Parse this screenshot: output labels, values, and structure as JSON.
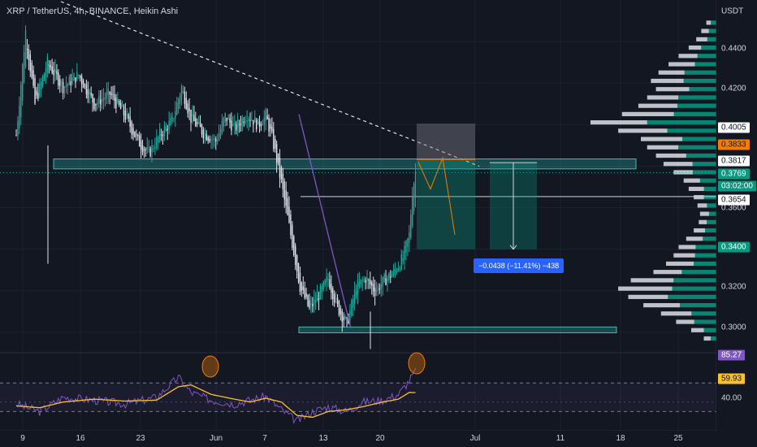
{
  "title": "XRP / TetherUS, 4h, BINANCE, Heikin Ashi",
  "currency": "USDT",
  "price_axis": {
    "labels": [
      "0.4400",
      "0.4200",
      "0.3600",
      "0.3200",
      "0.3000"
    ],
    "tags": [
      {
        "text": "0.4005",
        "bg": "#ffffff",
        "fg": "#131722"
      },
      {
        "text": "0.3833",
        "bg": "#f57c00",
        "fg": "#131722"
      },
      {
        "text": "0.3817",
        "bg": "#ffffff",
        "fg": "#131722"
      },
      {
        "text": "0.3769",
        "bg": "#089981",
        "fg": "#ffffff"
      },
      {
        "text": "03:02:00",
        "bg": "#089981",
        "fg": "#ffffff"
      },
      {
        "text": "0.3654",
        "bg": "#ffffff",
        "fg": "#131722"
      },
      {
        "text": "0.3400",
        "bg": "#089981",
        "fg": "#ffffff"
      }
    ]
  },
  "rsi_axis": {
    "labels": [
      {
        "text": "85.27",
        "bg": "#7e57c2",
        "fg": "#ffffff"
      },
      {
        "text": "59.93",
        "bg": "#fbc02d",
        "fg": "#131722"
      },
      {
        "text": "40.00",
        "bg": "",
        "fg": "#d1d4dc"
      }
    ]
  },
  "time_axis": [
    "9",
    "16",
    "23",
    "Jun",
    "7",
    "13",
    "20",
    "Jul",
    "11",
    "18",
    "25"
  ],
  "measure_label": "−0.0438 (−11.41%) −438",
  "chart_data": {
    "type": "candlestick",
    "title": "XRP / TetherUS, 4h, BINANCE, Heikin Ashi",
    "ylim": [
      0.291,
      0.46
    ],
    "y_ticks": [
      0.3,
      0.32,
      0.34,
      0.36,
      0.38,
      0.4,
      0.42,
      0.44
    ],
    "x_tick_labels": [
      "9",
      "16",
      "23",
      "Jun",
      "7",
      "13",
      "20",
      "Jul",
      "11",
      "18",
      "25"
    ],
    "price_path": [
      {
        "bar": 0,
        "close": 0.395
      },
      {
        "bar": 6,
        "close": 0.445
      },
      {
        "bar": 12,
        "close": 0.41
      },
      {
        "bar": 20,
        "close": 0.43
      },
      {
        "bar": 30,
        "close": 0.418
      },
      {
        "bar": 40,
        "close": 0.424
      },
      {
        "bar": 50,
        "close": 0.41
      },
      {
        "bar": 60,
        "close": 0.415
      },
      {
        "bar": 70,
        "close": 0.404
      },
      {
        "bar": 78,
        "close": 0.392
      },
      {
        "bar": 85,
        "close": 0.386
      },
      {
        "bar": 92,
        "close": 0.395
      },
      {
        "bar": 100,
        "close": 0.402
      },
      {
        "bar": 106,
        "close": 0.418
      },
      {
        "bar": 112,
        "close": 0.403
      },
      {
        "bar": 120,
        "close": 0.396
      },
      {
        "bar": 128,
        "close": 0.392
      },
      {
        "bar": 134,
        "close": 0.404
      },
      {
        "bar": 140,
        "close": 0.398
      },
      {
        "bar": 148,
        "close": 0.405
      },
      {
        "bar": 155,
        "close": 0.4
      },
      {
        "bar": 160,
        "close": 0.404
      },
      {
        "bar": 164,
        "close": 0.394
      },
      {
        "bar": 170,
        "close": 0.372
      },
      {
        "bar": 176,
        "close": 0.347
      },
      {
        "bar": 182,
        "close": 0.322
      },
      {
        "bar": 188,
        "close": 0.311
      },
      {
        "bar": 194,
        "close": 0.318
      },
      {
        "bar": 200,
        "close": 0.326
      },
      {
        "bar": 206,
        "close": 0.312
      },
      {
        "bar": 212,
        "close": 0.304
      },
      {
        "bar": 218,
        "close": 0.322
      },
      {
        "bar": 224,
        "close": 0.326
      },
      {
        "bar": 230,
        "close": 0.32
      },
      {
        "bar": 236,
        "close": 0.325
      },
      {
        "bar": 242,
        "close": 0.329
      },
      {
        "bar": 248,
        "close": 0.336
      },
      {
        "bar": 252,
        "close": 0.347
      },
      {
        "bar": 254,
        "close": 0.368
      },
      {
        "bar": 256,
        "close": 0.3769
      }
    ],
    "last_price": 0.3769,
    "levels": {
      "resistance_zone": [
        0.3787,
        0.3835
      ],
      "support_zone": [
        0.2998,
        0.3026
      ],
      "horizontal_line": 0.3654,
      "price_tags": [
        0.4005,
        0.3833,
        0.3817,
        0.3769,
        0.3654,
        0.34
      ]
    },
    "measure": {
      "change": -0.0438,
      "percent": -11.41,
      "ticks": -438
    },
    "rsi": {
      "upper": 70,
      "lower": 40,
      "current": 85.27,
      "ma": 59.93,
      "values": [
        {
          "bar": 0,
          "rsi": 48,
          "ma": 46
        },
        {
          "bar": 15,
          "rsi": 40,
          "ma": 44
        },
        {
          "bar": 30,
          "rsi": 55,
          "ma": 50
        },
        {
          "bar": 50,
          "rsi": 52,
          "ma": 53
        },
        {
          "bar": 70,
          "rsi": 48,
          "ma": 51
        },
        {
          "bar": 90,
          "rsi": 55,
          "ma": 52
        },
        {
          "bar": 104,
          "rsi": 76,
          "ma": 66
        },
        {
          "bar": 112,
          "rsi": 60,
          "ma": 68
        },
        {
          "bar": 125,
          "rsi": 52,
          "ma": 58
        },
        {
          "bar": 140,
          "rsi": 48,
          "ma": 53
        },
        {
          "bar": 150,
          "rsi": 52,
          "ma": 50
        },
        {
          "bar": 160,
          "rsi": 56,
          "ma": 54
        },
        {
          "bar": 170,
          "rsi": 42,
          "ma": 50
        },
        {
          "bar": 180,
          "rsi": 30,
          "ma": 36
        },
        {
          "bar": 190,
          "rsi": 40,
          "ma": 34
        },
        {
          "bar": 200,
          "rsi": 45,
          "ma": 40
        },
        {
          "bar": 212,
          "rsi": 40,
          "ma": 42
        },
        {
          "bar": 222,
          "rsi": 50,
          "ma": 45
        },
        {
          "bar": 235,
          "rsi": 52,
          "ma": 50
        },
        {
          "bar": 245,
          "rsi": 58,
          "ma": 53
        },
        {
          "bar": 252,
          "rsi": 72,
          "ma": 60
        },
        {
          "bar": 256,
          "rsi": 85.27,
          "ma": 59.93
        }
      ]
    },
    "volume_profile": [
      {
        "price": 0.449,
        "vol": 0.08
      },
      {
        "price": 0.445,
        "vol": 0.12
      },
      {
        "price": 0.441,
        "vol": 0.16
      },
      {
        "price": 0.437,
        "vol": 0.22
      },
      {
        "price": 0.433,
        "vol": 0.3
      },
      {
        "price": 0.429,
        "vol": 0.38
      },
      {
        "price": 0.425,
        "vol": 0.46
      },
      {
        "price": 0.421,
        "vol": 0.52
      },
      {
        "price": 0.417,
        "vol": 0.48
      },
      {
        "price": 0.413,
        "vol": 0.55
      },
      {
        "price": 0.409,
        "vol": 0.62
      },
      {
        "price": 0.405,
        "vol": 0.75
      },
      {
        "price": 0.401,
        "vol": 1.0
      },
      {
        "price": 0.397,
        "vol": 0.78
      },
      {
        "price": 0.393,
        "vol": 0.6
      },
      {
        "price": 0.389,
        "vol": 0.55
      },
      {
        "price": 0.385,
        "vol": 0.48
      },
      {
        "price": 0.381,
        "vol": 0.42
      },
      {
        "price": 0.377,
        "vol": 0.34
      },
      {
        "price": 0.373,
        "vol": 0.26
      },
      {
        "price": 0.369,
        "vol": 0.22
      },
      {
        "price": 0.365,
        "vol": 0.18
      },
      {
        "price": 0.361,
        "vol": 0.15
      },
      {
        "price": 0.357,
        "vol": 0.13
      },
      {
        "price": 0.353,
        "vol": 0.14
      },
      {
        "price": 0.349,
        "vol": 0.18
      },
      {
        "price": 0.345,
        "vol": 0.24
      },
      {
        "price": 0.341,
        "vol": 0.3
      },
      {
        "price": 0.337,
        "vol": 0.34
      },
      {
        "price": 0.333,
        "vol": 0.4
      },
      {
        "price": 0.329,
        "vol": 0.5
      },
      {
        "price": 0.325,
        "vol": 0.68
      },
      {
        "price": 0.321,
        "vol": 0.78
      },
      {
        "price": 0.317,
        "vol": 0.7
      },
      {
        "price": 0.313,
        "vol": 0.58
      },
      {
        "price": 0.309,
        "vol": 0.44
      },
      {
        "price": 0.305,
        "vol": 0.32
      },
      {
        "price": 0.301,
        "vol": 0.2
      },
      {
        "price": 0.297,
        "vol": 0.1
      }
    ],
    "colors": {
      "up": "#26a69a",
      "down": "#e0e3eb",
      "rsi": "#7e57c2",
      "rsi_ma": "#fbc02d",
      "zone": "#26a69a",
      "trend": "#e0e3eb"
    }
  }
}
